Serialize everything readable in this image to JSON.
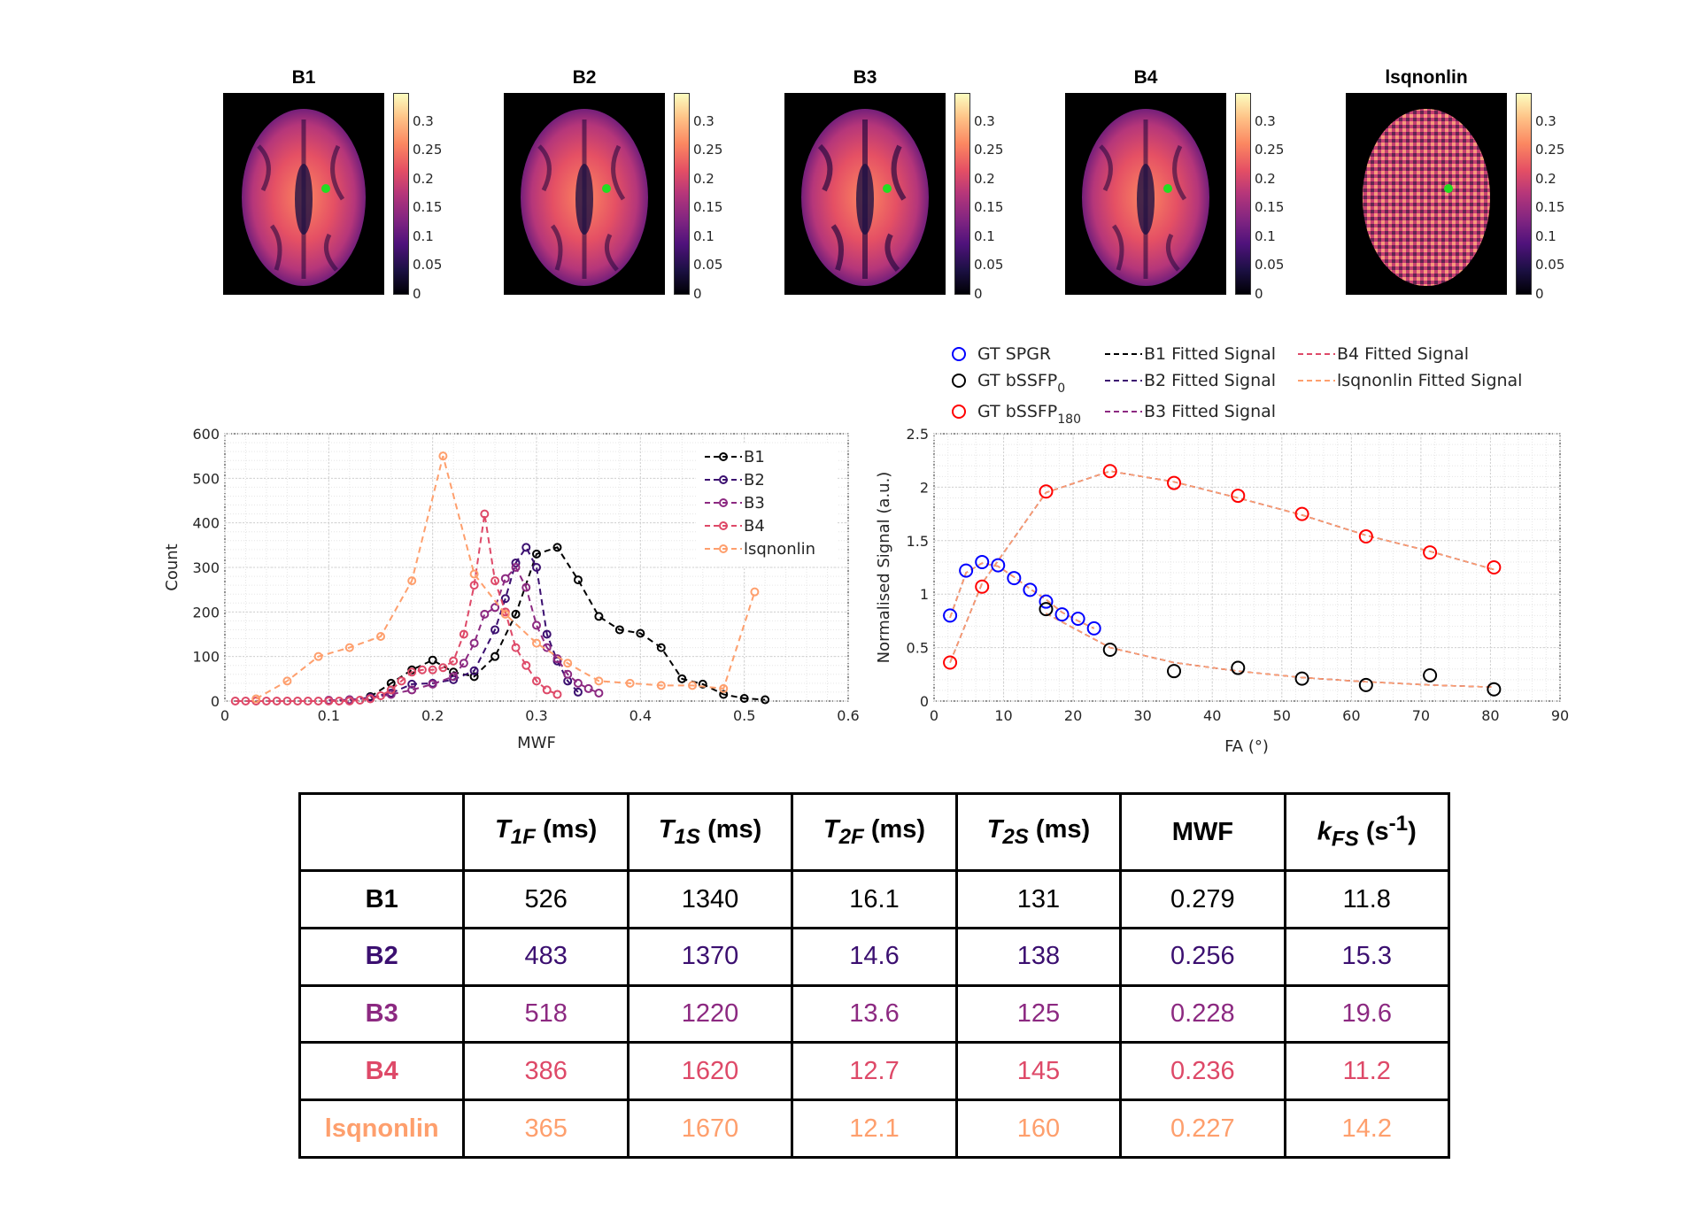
{
  "colors": {
    "B1": "#000000",
    "B2": "#3b0f70",
    "B3": "#8c2981",
    "B4": "#de4968",
    "lsqnonlin": "#fe9f6d",
    "gt_spgr": "#0000ff",
    "gt_bssfp0": "#000000",
    "gt_bssfp180": "#ff0000",
    "marker_green": "#22dd22"
  },
  "maps": {
    "titles": [
      "B1",
      "B2",
      "B3",
      "B4",
      "lsqnonlin"
    ],
    "colorbar_ticks": [
      "0.3",
      "0.25",
      "0.2",
      "0.15",
      "0.1",
      "0.05",
      "0"
    ]
  },
  "chart_data": [
    {
      "type": "line",
      "title": "",
      "xlabel": "MWF",
      "ylabel": "Count",
      "xlim": [
        0,
        0.6
      ],
      "ylim": [
        0,
        600
      ],
      "xticks": [
        0,
        0.1,
        0.2,
        0.3,
        0.4,
        0.5,
        0.6
      ],
      "xtick_labels": [
        "0",
        "0.1",
        "0.2",
        "0.3",
        "0.4",
        "0.5",
        "0.6"
      ],
      "yticks": [
        0,
        100,
        200,
        300,
        400,
        500,
        600
      ],
      "ytick_labels": [
        "0",
        "100",
        "200",
        "300",
        "400",
        "500",
        "600"
      ],
      "grid": true,
      "legend": "top-right",
      "series": [
        {
          "name": "B1",
          "color": "#000000",
          "x": [
            0.14,
            0.16,
            0.18,
            0.2,
            0.22,
            0.24,
            0.26,
            0.28,
            0.3,
            0.32,
            0.34,
            0.36,
            0.38,
            0.4,
            0.42,
            0.44,
            0.46,
            0.48,
            0.5,
            0.52
          ],
          "y": [
            10,
            40,
            70,
            92,
            65,
            55,
            100,
            195,
            330,
            345,
            272,
            190,
            160,
            152,
            120,
            50,
            38,
            15,
            6,
            3
          ]
        },
        {
          "name": "B2",
          "color": "#3b0f70",
          "x": [
            0.12,
            0.14,
            0.16,
            0.18,
            0.2,
            0.22,
            0.24,
            0.26,
            0.27,
            0.28,
            0.29,
            0.3,
            0.31,
            0.32,
            0.33,
            0.34
          ],
          "y": [
            3,
            8,
            18,
            38,
            40,
            48,
            68,
            160,
            230,
            310,
            345,
            300,
            150,
            90,
            45,
            20
          ]
        },
        {
          "name": "B3",
          "color": "#8c2981",
          "x": [
            0.1,
            0.12,
            0.14,
            0.16,
            0.18,
            0.2,
            0.22,
            0.23,
            0.24,
            0.25,
            0.26,
            0.27,
            0.28,
            0.29,
            0.3,
            0.31,
            0.32,
            0.33,
            0.34,
            0.35,
            0.36
          ],
          "y": [
            2,
            3,
            6,
            15,
            25,
            38,
            55,
            85,
            130,
            195,
            210,
            275,
            300,
            255,
            170,
            120,
            95,
            60,
            40,
            28,
            18
          ]
        },
        {
          "name": "B4",
          "color": "#de4968",
          "x": [
            0.01,
            0.02,
            0.03,
            0.04,
            0.05,
            0.06,
            0.07,
            0.08,
            0.09,
            0.1,
            0.11,
            0.12,
            0.13,
            0.14,
            0.15,
            0.16,
            0.17,
            0.18,
            0.19,
            0.2,
            0.21,
            0.22,
            0.23,
            0.24,
            0.25,
            0.26,
            0.27,
            0.28,
            0.29,
            0.3,
            0.31,
            0.32
          ],
          "y": [
            0,
            0,
            0,
            0,
            0,
            0,
            0,
            0,
            0,
            0,
            0,
            0,
            2,
            5,
            12,
            25,
            45,
            65,
            70,
            70,
            75,
            90,
            150,
            260,
            420,
            270,
            200,
            120,
            80,
            45,
            25,
            15
          ]
        },
        {
          "name": "lsqnonlin",
          "color": "#fe9f6d",
          "x": [
            0.03,
            0.06,
            0.09,
            0.12,
            0.15,
            0.18,
            0.21,
            0.24,
            0.27,
            0.3,
            0.33,
            0.36,
            0.39,
            0.42,
            0.45,
            0.48,
            0.51
          ],
          "y": [
            5,
            45,
            100,
            120,
            145,
            270,
            550,
            285,
            195,
            130,
            85,
            45,
            40,
            35,
            35,
            28,
            245
          ]
        }
      ]
    },
    {
      "type": "scatter",
      "title": "",
      "xlabel": "FA (°)",
      "ylabel": "Normalised Signal (a.u.)",
      "xlim": [
        0,
        90
      ],
      "ylim": [
        0,
        2.5
      ],
      "xticks": [
        0,
        10,
        20,
        30,
        40,
        50,
        60,
        70,
        80,
        90
      ],
      "xtick_labels": [
        "0",
        "10",
        "20",
        "30",
        "40",
        "50",
        "60",
        "70",
        "80",
        "90"
      ],
      "yticks": [
        0,
        0.5,
        1,
        1.5,
        2,
        2.5
      ],
      "ytick_labels": [
        "0",
        "0.5",
        "1",
        "1.5",
        "2",
        "2.5"
      ],
      "grid": true,
      "legend": "top",
      "legend_labels": {
        "gt_spgr": "GT SPGR",
        "gt_bssfp0": "GT bSSFP",
        "gt_bssfp0_sub": "0",
        "gt_bssfp180": "GT bSSFP",
        "gt_bssfp180_sub": "180",
        "b1_fit": "B1 Fitted Signal",
        "b2_fit": "B2 Fitted Signal",
        "b3_fit": "B3 Fitted Signal",
        "b4_fit": "B4 Fitted Signal",
        "lsq_fit": "lsqnonlin Fitted Signal"
      },
      "gt_spgr": {
        "x": [
          2.3,
          4.6,
          6.9,
          9.2,
          11.5,
          13.8,
          16.1,
          18.4,
          20.7,
          23.0
        ],
        "y": [
          0.8,
          1.22,
          1.3,
          1.27,
          1.15,
          1.04,
          0.93,
          0.81,
          0.77,
          0.68
        ]
      },
      "gt_bssfp0": {
        "x": [
          16.1,
          25.3,
          34.5,
          43.7,
          52.9,
          62.1,
          71.3,
          80.5
        ],
        "y": [
          0.86,
          0.48,
          0.28,
          0.31,
          0.21,
          0.15,
          0.24,
          0.11
        ]
      },
      "gt_bssfp180": {
        "x": [
          2.3,
          6.9,
          16.1,
          25.3,
          34.5,
          43.7,
          52.9,
          62.1,
          71.3,
          80.5
        ],
        "y": [
          0.36,
          1.07,
          1.96,
          2.15,
          2.04,
          1.92,
          1.75,
          1.54,
          1.39,
          1.25
        ]
      },
      "fit_spgr": {
        "x": [
          2.3,
          4.6,
          6.9,
          9.2,
          11.5,
          13.8,
          16.1,
          18.4,
          20.7,
          23.0
        ],
        "y": [
          0.78,
          1.2,
          1.29,
          1.26,
          1.16,
          1.05,
          0.95,
          0.83,
          0.75,
          0.68
        ]
      },
      "fit_bssfp0": {
        "x": [
          16.1,
          25.3,
          34.5,
          43.7,
          52.9,
          62.1,
          71.3,
          80.5
        ],
        "y": [
          0.82,
          0.5,
          0.36,
          0.28,
          0.22,
          0.18,
          0.15,
          0.13
        ]
      },
      "fit_bssfp180": {
        "x": [
          2.3,
          6.9,
          16.1,
          25.3,
          34.5,
          43.7,
          52.9,
          62.1,
          71.3,
          80.5
        ],
        "y": [
          0.36,
          1.1,
          1.95,
          2.15,
          2.05,
          1.9,
          1.74,
          1.55,
          1.4,
          1.23
        ]
      }
    },
    {
      "type": "table",
      "headers": [
        {
          "main": "T",
          "sub": "1F",
          "unit": " (ms)",
          "sup": ""
        },
        {
          "main": "T",
          "sub": "1S",
          "unit": " (ms)",
          "sup": ""
        },
        {
          "main": "T",
          "sub": "2F",
          "unit": " (ms)",
          "sup": ""
        },
        {
          "main": "T",
          "sub": "2S",
          "unit": " (ms)",
          "sup": ""
        },
        {
          "main": "MWF",
          "sub": "",
          "unit": "",
          "sup": ""
        },
        {
          "main": "k",
          "sub": "FS",
          "unit": " (s",
          "sup": "-1",
          "close": ")"
        }
      ],
      "rows": [
        {
          "label": "B1",
          "values": [
            "526",
            "1340",
            "16.1",
            "131",
            "0.279",
            "11.8"
          ]
        },
        {
          "label": "B2",
          "values": [
            "483",
            "1370",
            "14.6",
            "138",
            "0.256",
            "15.3"
          ]
        },
        {
          "label": "B3",
          "values": [
            "518",
            "1220",
            "13.6",
            "125",
            "0.228",
            "19.6"
          ]
        },
        {
          "label": "B4",
          "values": [
            "386",
            "1620",
            "12.7",
            "145",
            "0.236",
            "11.2"
          ]
        },
        {
          "label": "lsqnonlin",
          "values": [
            "365",
            "1670",
            "12.1",
            "160",
            "0.227",
            "14.2"
          ]
        }
      ]
    }
  ]
}
